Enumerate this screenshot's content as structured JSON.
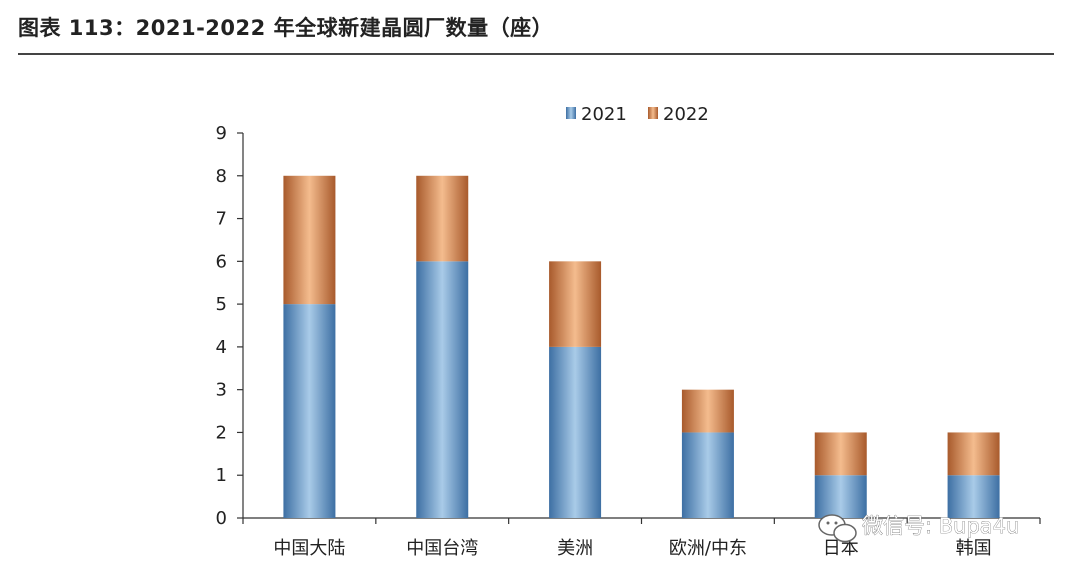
{
  "title": "图表 113：2021-2022 年全球新建晶圆厂数量（座）",
  "watermark": "微信号: Bupa4u",
  "colors": {
    "c2021_light": "#a9cbe8",
    "c2021_dark": "#3d6fa3",
    "c2022_light": "#f4bc8e",
    "c2022_dark": "#a85a2c"
  },
  "chart_data": {
    "type": "bar",
    "stacked": true,
    "categories": [
      "中国大陆",
      "中国台湾",
      "美洲",
      "欧洲/中东",
      "日本",
      "韩国"
    ],
    "series": [
      {
        "name": "2021",
        "values": [
          5,
          6,
          4,
          2,
          1,
          1
        ]
      },
      {
        "name": "2022",
        "values": [
          3,
          2,
          2,
          1,
          1,
          1
        ]
      }
    ],
    "ylim": [
      0,
      9
    ],
    "yticks": [
      "0",
      "1",
      "2",
      "3",
      "4",
      "5",
      "6",
      "7",
      "8",
      "9"
    ],
    "legend_position": "top",
    "grid": false
  }
}
